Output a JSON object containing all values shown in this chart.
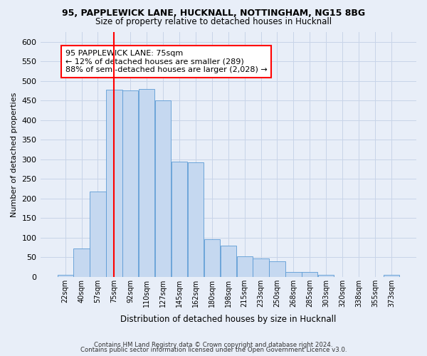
{
  "title1": "95, PAPPLEWICK LANE, HUCKNALL, NOTTINGHAM, NG15 8BG",
  "title2": "Size of property relative to detached houses in Hucknall",
  "xlabel": "Distribution of detached houses by size in Hucknall",
  "ylabel": "Number of detached properties",
  "categories": [
    "22sqm",
    "40sqm",
    "57sqm",
    "75sqm",
    "92sqm",
    "110sqm",
    "127sqm",
    "145sqm",
    "162sqm",
    "180sqm",
    "198sqm",
    "215sqm",
    "233sqm",
    "250sqm",
    "268sqm",
    "285sqm",
    "303sqm",
    "320sqm",
    "338sqm",
    "355sqm",
    "373sqm"
  ],
  "values": [
    5,
    72,
    218,
    477,
    476,
    479,
    450,
    294,
    293,
    96,
    80,
    53,
    47,
    40,
    13,
    12,
    5,
    0,
    0,
    0,
    5
  ],
  "bar_color": "#c5d8f0",
  "bar_edge_color": "#5b9bd5",
  "grid_color": "#c8d4e8",
  "background_color": "#e8eef8",
  "vline_x": 3.5,
  "vline_color": "red",
  "annotation_text": "95 PAPPLEWICK LANE: 75sqm\n← 12% of detached houses are smaller (289)\n88% of semi-detached houses are larger (2,028) →",
  "annotation_box_color": "white",
  "annotation_box_edge": "red",
  "ylim": [
    0,
    625
  ],
  "yticks": [
    0,
    50,
    100,
    150,
    200,
    250,
    300,
    350,
    400,
    450,
    500,
    550,
    600
  ],
  "footer1": "Contains HM Land Registry data © Crown copyright and database right 2024.",
  "footer2": "Contains public sector information licensed under the Open Government Licence v3.0."
}
